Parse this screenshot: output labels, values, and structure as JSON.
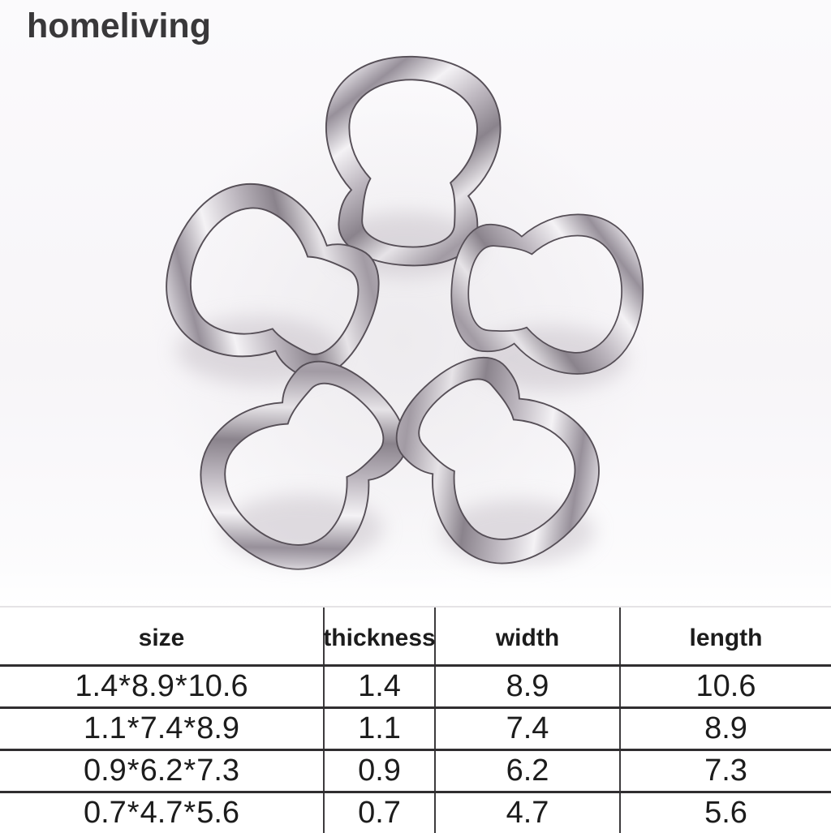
{
  "brand": "homeliving",
  "photo": {
    "subject": "stainless steel pear-shaped solid rings arranged in a flower pattern",
    "ring_count": 5
  },
  "spec_table": {
    "columns": [
      "size",
      "thickness",
      "width",
      "length"
    ],
    "rows": [
      {
        "size": "1.4*8.9*10.6",
        "thickness": "1.4",
        "width": "8.9",
        "length": "10.6"
      },
      {
        "size": "1.1*7.4*8.9",
        "thickness": "1.1",
        "width": "7.4",
        "length": "8.9"
      },
      {
        "size": "0.9*6.2*7.3",
        "thickness": "0.9",
        "width": "6.2",
        "length": "7.3"
      },
      {
        "size": "0.7*4.7*5.6",
        "thickness": "0.7",
        "width": "4.7",
        "length": "5.6"
      }
    ]
  },
  "colors": {
    "background": "#f7f5f8",
    "metal_highlight": "#f4f2f5",
    "metal_mid": "#b3adb5",
    "metal_dark": "#6e6770",
    "table_line": "#302e30",
    "text": "#1c1c1c",
    "brand_text": "#39383a"
  }
}
